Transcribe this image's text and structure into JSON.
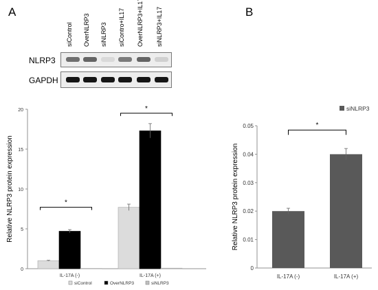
{
  "panel_a": {
    "letter": "A",
    "blot": {
      "lanes": [
        "siControl",
        "OverNLRP3",
        "siNLRP3",
        "siContro+IL17",
        "OverNLRP3+IL17",
        "siNLRP3+IL17"
      ],
      "rows": [
        {
          "label": "NLRP3",
          "band_intensity": [
            0.55,
            0.6,
            0.08,
            0.5,
            0.6,
            0.12
          ]
        },
        {
          "label": "GAPDH",
          "band_intensity": [
            0.95,
            0.95,
            0.95,
            0.95,
            0.95,
            0.95
          ]
        }
      ]
    }
  },
  "panel_b": {
    "letter": "B"
  },
  "colors": {
    "siControl": "#dcdcdc",
    "OverNLRP3": "#000000",
    "siNLRP3": "#c0c0c0",
    "panel_b_bar": "#595959",
    "axis": "#909090"
  },
  "chart_data": [
    {
      "type": "bar",
      "title": "",
      "xlabel": "",
      "ylabel": "Relative NLRP3 protein expression",
      "categories": [
        "IL-17A (-)",
        "IL-17A (+)"
      ],
      "series": [
        {
          "name": "siControl",
          "values": [
            1.0,
            7.7
          ],
          "errors": [
            0.05,
            0.4
          ]
        },
        {
          "name": "OverNLRP3",
          "values": [
            4.7,
            17.3
          ],
          "errors": [
            0.2,
            0.9
          ]
        },
        {
          "name": "siNLRP3",
          "values": [
            0.04,
            0.07
          ],
          "errors": [
            0,
            0
          ]
        }
      ],
      "ylim": [
        0,
        20
      ],
      "yticks": [
        0,
        5,
        10,
        15,
        20
      ],
      "legend_position": "bottom",
      "grid": false,
      "annotations": [
        {
          "text": "*",
          "bracket_between": [
            "IL-17A (-) siControl",
            "IL-17A (-) OverNLRP3"
          ]
        },
        {
          "text": "*",
          "bracket_between": [
            "IL-17A (+) siControl",
            "IL-17A (+) OverNLRP3"
          ]
        }
      ]
    },
    {
      "type": "bar",
      "title": "",
      "xlabel": "",
      "ylabel": "Relative NLRP3 protein expression",
      "categories": [
        "IL-17A (-)",
        "IL-17A (+)"
      ],
      "series": [
        {
          "name": "siNLRP3",
          "values": [
            0.02,
            0.04
          ],
          "errors": [
            0.001,
            0.002
          ]
        }
      ],
      "ylim": [
        0,
        0.05
      ],
      "yticks": [
        0,
        0.01,
        0.02,
        0.03,
        0.04,
        0.05
      ],
      "legend_position": "top-right",
      "grid": false,
      "annotations": [
        {
          "text": "*",
          "bracket_between": [
            "IL-17A (-)",
            "IL-17A (+)"
          ]
        }
      ]
    }
  ]
}
